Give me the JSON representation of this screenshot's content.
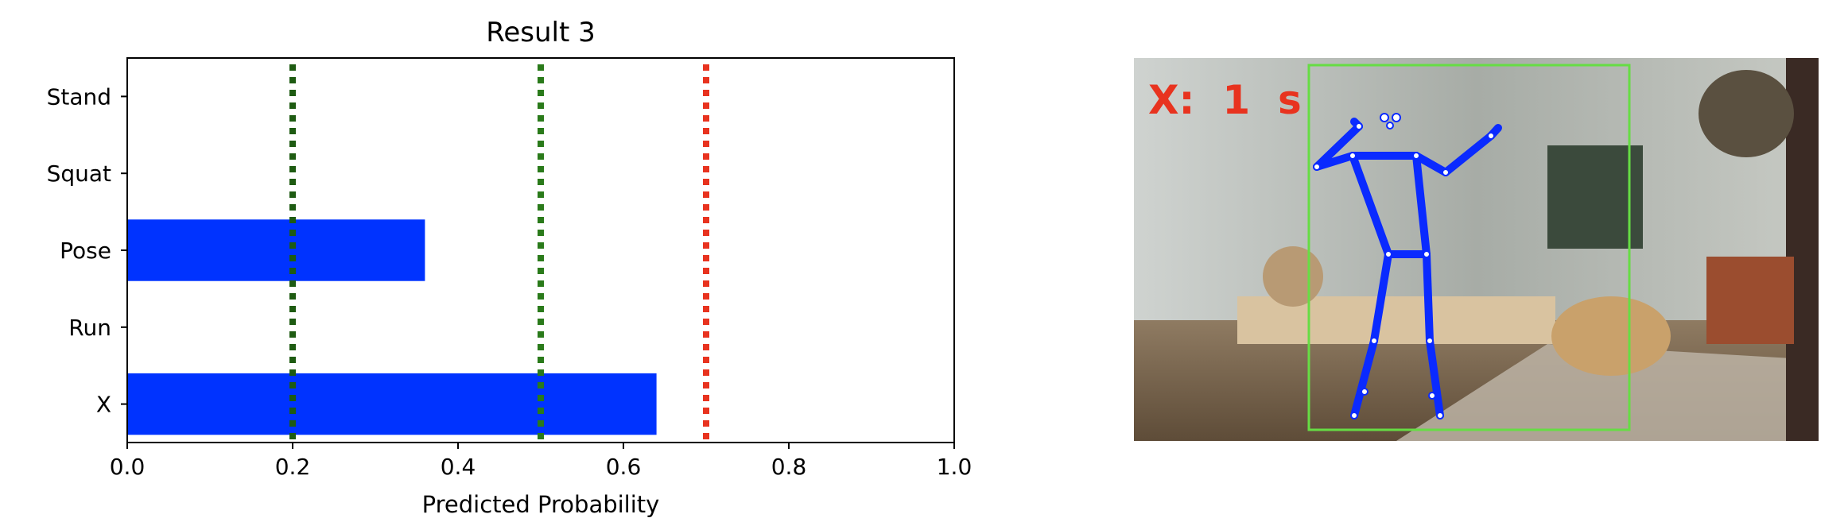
{
  "chart_data": {
    "type": "bar",
    "orientation": "horizontal",
    "title": "Result 3",
    "xlabel": "Predicted Probability",
    "ylabel": "",
    "categories": [
      "Stand",
      "Squat",
      "Pose",
      "Run",
      "X"
    ],
    "values": [
      0.0,
      0.0,
      0.36,
      0.0,
      0.64
    ],
    "xlim": [
      0.0,
      1.0
    ],
    "xticks": [
      "0.0",
      "0.2",
      "0.4",
      "0.6",
      "0.8",
      "1.0"
    ],
    "bar_color": "#0033ff",
    "reference_lines": [
      {
        "x": 0.2,
        "color": "#1e5b12"
      },
      {
        "x": 0.5,
        "color": "#2a7a1a"
      },
      {
        "x": 0.7,
        "color": "#e8331f"
      }
    ],
    "grid": false,
    "legend": "none"
  },
  "image_panel": {
    "overlay_text": "X:  1  s",
    "overlay_color": "#e8331f",
    "bbox_color": "#66dd44",
    "skeleton_color": "#0a2aff"
  }
}
